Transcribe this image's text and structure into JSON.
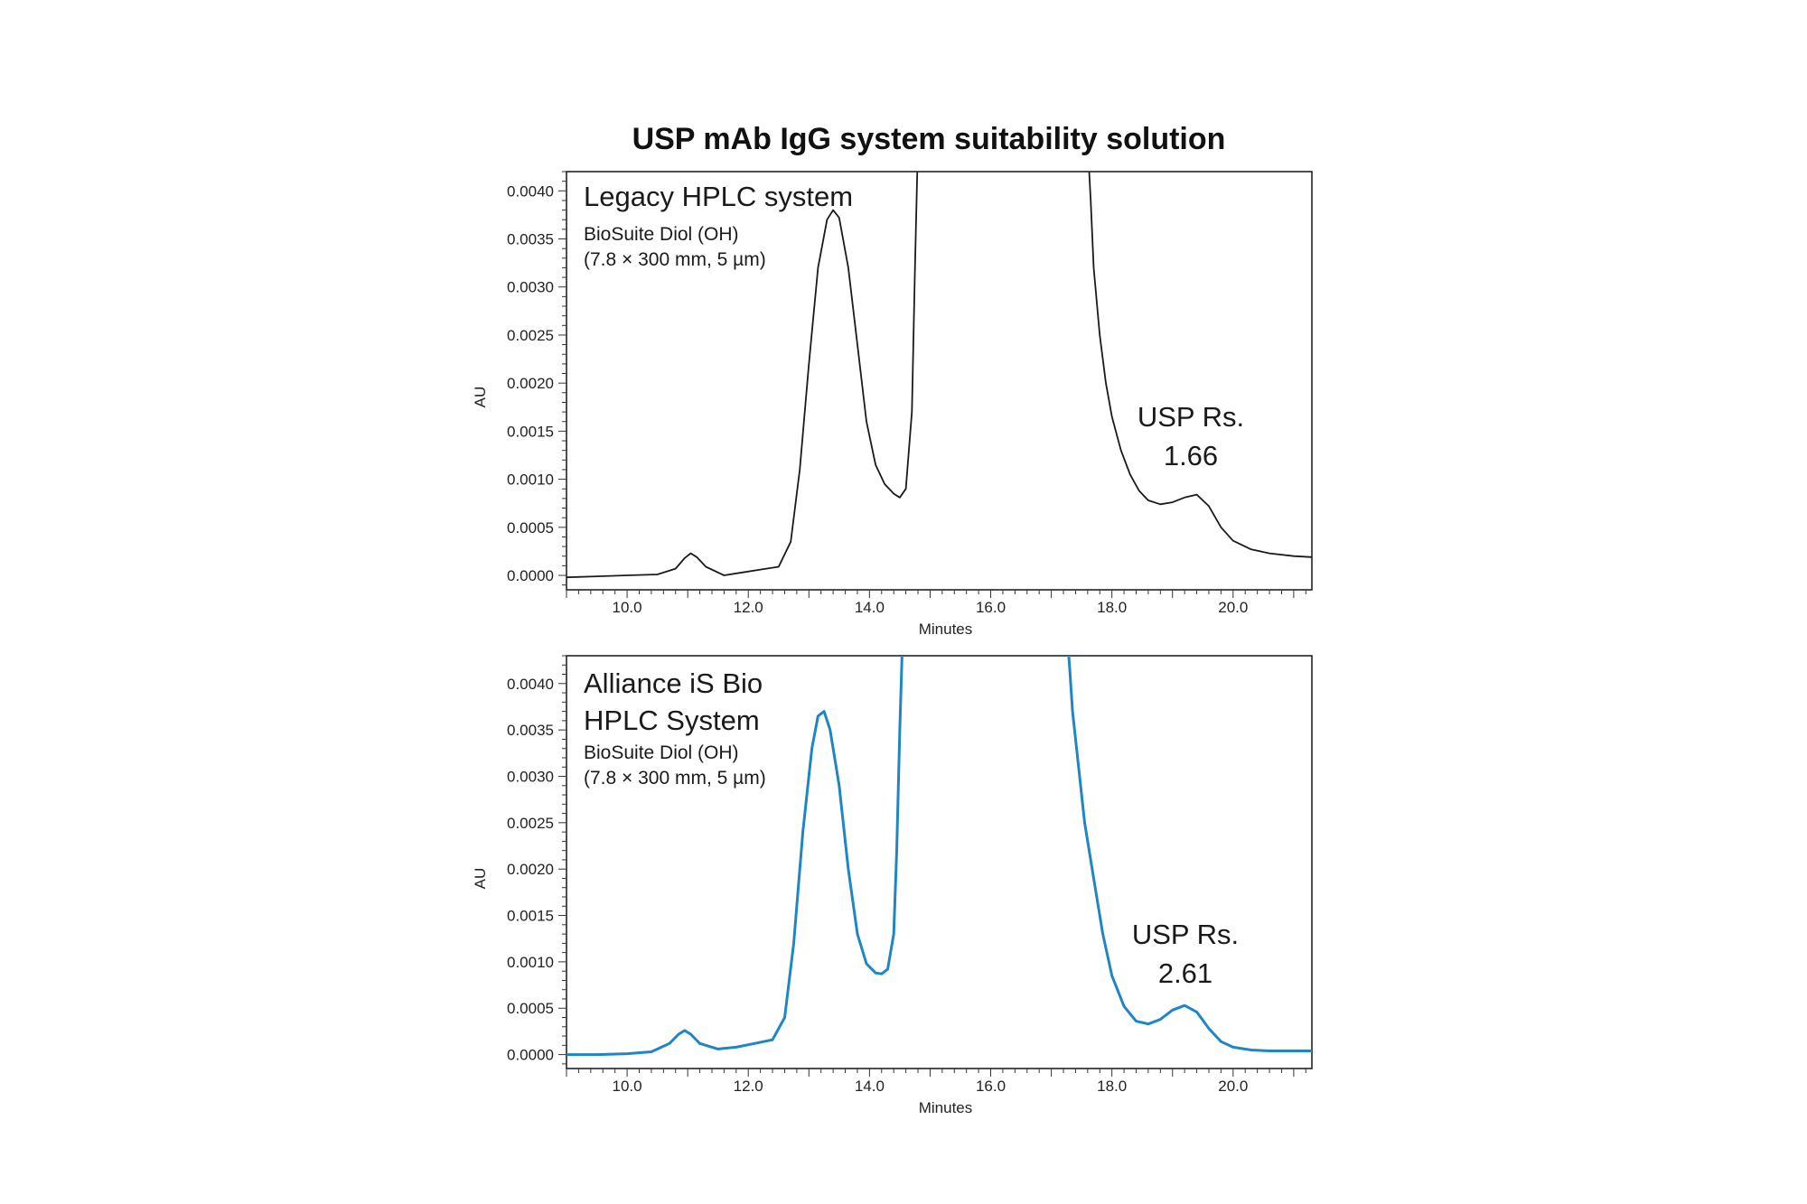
{
  "title": "USP mAb IgG system suitability solution",
  "chart_data": [
    {
      "type": "line",
      "panel_title": [
        "Legacy HPLC system"
      ],
      "subtitle": [
        "BioSuite Diol (OH)",
        "(7.8 × 300 mm, 5 µm)"
      ],
      "annotation": [
        "USP Rs.",
        "1.66"
      ],
      "xlabel": "Minutes",
      "ylabel": "AU",
      "xlim": [
        9.0,
        21.3
      ],
      "ylim": [
        -0.00015,
        0.0042
      ],
      "x_ticks": [
        "10.0",
        "12.0",
        "14.0",
        "16.0",
        "18.0",
        "20.0"
      ],
      "y_ticks": [
        "0.0000",
        "0.0005",
        "0.0010",
        "0.0015",
        "0.0020",
        "0.0025",
        "0.0030",
        "0.0035",
        "0.0040"
      ],
      "color": "#1a1a1a",
      "series": [
        {
          "x": [
            9.0,
            9.5,
            10.0,
            10.5,
            10.8,
            10.95,
            11.05,
            11.15,
            11.3,
            11.6,
            11.9,
            12.2,
            12.5,
            12.7,
            12.85,
            13.0,
            13.15,
            13.3,
            13.4,
            13.5,
            13.65,
            13.8,
            13.95,
            14.1,
            14.25,
            14.4,
            14.5,
            14.6,
            14.7,
            14.75,
            14.8,
            17.6,
            17.65,
            17.7,
            17.8,
            17.9,
            18.0,
            18.15,
            18.3,
            18.45,
            18.6,
            18.8,
            19.0,
            19.2,
            19.4,
            19.6,
            19.8,
            20.0,
            20.3,
            20.6,
            21.0,
            21.3
          ],
          "y": [
            -2e-05,
            -1e-05,
            0.0,
            1e-05,
            7e-05,
            0.00018,
            0.00023,
            0.00019,
            9e-05,
            0.0,
            3e-05,
            6e-05,
            9e-05,
            0.00035,
            0.0011,
            0.0022,
            0.0032,
            0.0037,
            0.0038,
            0.00372,
            0.0032,
            0.0024,
            0.0016,
            0.00115,
            0.00095,
            0.00085,
            0.00081,
            0.0009,
            0.0017,
            0.0032,
            0.0045,
            0.0045,
            0.0039,
            0.0032,
            0.0025,
            0.002,
            0.00165,
            0.0013,
            0.00105,
            0.00088,
            0.00078,
            0.00074,
            0.00076,
            0.00081,
            0.00084,
            0.00072,
            0.0005,
            0.00036,
            0.00027,
            0.00023,
            0.0002,
            0.00019
          ]
        }
      ]
    },
    {
      "type": "line",
      "panel_title": [
        "Alliance iS Bio",
        "HPLC System"
      ],
      "subtitle": [
        "BioSuite Diol (OH)",
        "(7.8 × 300 mm, 5 µm)"
      ],
      "annotation": [
        "USP Rs.",
        "2.61"
      ],
      "xlabel": "Minutes",
      "ylabel": "AU",
      "xlim": [
        9.0,
        21.3
      ],
      "ylim": [
        -0.00015,
        0.0043
      ],
      "x_ticks": [
        "10.0",
        "12.0",
        "14.0",
        "16.0",
        "18.0",
        "20.0"
      ],
      "y_ticks": [
        "0.0000",
        "0.0005",
        "0.0010",
        "0.0015",
        "0.0020",
        "0.0025",
        "0.0030",
        "0.0035",
        "0.0040"
      ],
      "color": "#1f86c4",
      "series": [
        {
          "x": [
            9.0,
            9.5,
            10.0,
            10.4,
            10.7,
            10.85,
            10.95,
            11.05,
            11.2,
            11.5,
            11.8,
            12.1,
            12.4,
            12.6,
            12.75,
            12.9,
            13.05,
            13.15,
            13.25,
            13.35,
            13.5,
            13.65,
            13.8,
            13.95,
            14.1,
            14.2,
            14.3,
            14.4,
            14.45,
            14.5,
            14.55,
            17.25,
            17.3,
            17.35,
            17.45,
            17.55,
            17.7,
            17.85,
            18.0,
            18.2,
            18.4,
            18.6,
            18.8,
            19.0,
            19.2,
            19.4,
            19.6,
            19.8,
            20.0,
            20.3,
            20.6,
            21.0,
            21.3
          ],
          "y": [
            0.0,
            0.0,
            1e-05,
            3e-05,
            0.00012,
            0.00022,
            0.00026,
            0.00022,
            0.00012,
            6e-05,
            8e-05,
            0.00012,
            0.00016,
            0.0004,
            0.0012,
            0.0024,
            0.0033,
            0.00365,
            0.0037,
            0.0035,
            0.0029,
            0.002,
            0.0013,
            0.00098,
            0.00088,
            0.00087,
            0.00092,
            0.0013,
            0.0022,
            0.0035,
            0.0046,
            0.0046,
            0.0042,
            0.0037,
            0.0031,
            0.0025,
            0.0019,
            0.0013,
            0.00085,
            0.00052,
            0.00036,
            0.00033,
            0.00038,
            0.00048,
            0.00053,
            0.00046,
            0.00028,
            0.00014,
            8e-05,
            5e-05,
            4e-05,
            4e-05,
            4e-05
          ]
        }
      ]
    }
  ]
}
